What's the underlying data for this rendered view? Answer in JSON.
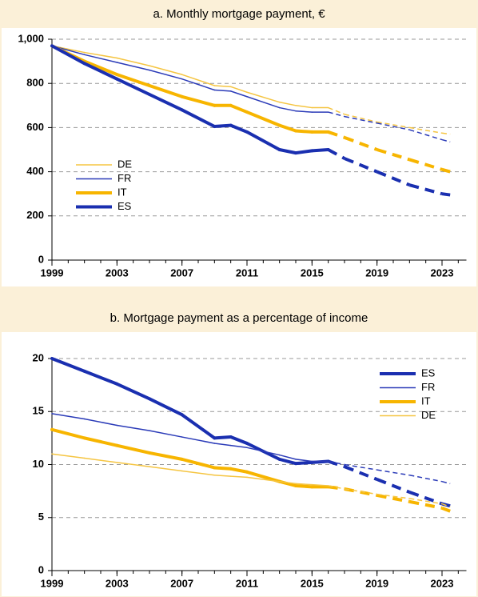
{
  "chart_data": [
    {
      "type": "line",
      "title": "a. Monthly mortgage payment, €",
      "x": [
        1999,
        2001,
        2003,
        2005,
        2007,
        2009,
        2010,
        2011,
        2013,
        2014,
        2015,
        2016,
        2017,
        2019,
        2021,
        2023,
        2023.5
      ],
      "series": [
        {
          "name": "DE",
          "color": "#f5c542",
          "width": 1.5,
          "values": [
            970,
            940,
            915,
            880,
            840,
            790,
            785,
            760,
            715,
            700,
            690,
            690,
            660,
            625,
            600,
            575,
            570
          ]
        },
        {
          "name": "FR",
          "color": "#2b3bb8",
          "width": 1.5,
          "values": [
            970,
            930,
            895,
            860,
            820,
            770,
            765,
            740,
            690,
            675,
            670,
            670,
            650,
            620,
            590,
            545,
            535
          ]
        },
        {
          "name": "IT",
          "color": "#f7b500",
          "width": 4,
          "values": [
            970,
            900,
            840,
            790,
            740,
            700,
            700,
            670,
            610,
            585,
            580,
            580,
            555,
            500,
            455,
            410,
            400
          ]
        },
        {
          "name": "ES",
          "color": "#1a2fb0",
          "width": 4,
          "values": [
            970,
            890,
            820,
            750,
            680,
            605,
            610,
            580,
            500,
            485,
            495,
            500,
            460,
            400,
            340,
            300,
            295
          ]
        }
      ],
      "dashed_from": 2016,
      "xlim": [
        1999,
        2024.5
      ],
      "xticks": [
        1999,
        2003,
        2007,
        2011,
        2015,
        2019,
        2023
      ],
      "ylim": [
        0,
        1000
      ],
      "yticks": [
        0,
        200,
        400,
        600,
        800,
        {
          "value": 1000,
          "label": "1,000"
        }
      ],
      "grid": true,
      "legend": "lower left"
    },
    {
      "type": "line",
      "title": "b. Mortgage payment as a percentage of income",
      "x": [
        1999,
        2001,
        2003,
        2005,
        2007,
        2009,
        2010,
        2011,
        2013,
        2014,
        2015,
        2016,
        2017,
        2019,
        2021,
        2023,
        2023.5
      ],
      "series": [
        {
          "name": "ES",
          "color": "#1a2fb0",
          "width": 4,
          "values": [
            20,
            18.8,
            17.6,
            16.2,
            14.7,
            12.5,
            12.6,
            12.0,
            10.5,
            10.1,
            10.2,
            10.3,
            9.8,
            8.6,
            7.4,
            6.3,
            6.1
          ]
        },
        {
          "name": "FR",
          "color": "#2b3bb8",
          "width": 1.5,
          "values": [
            14.8,
            14.3,
            13.7,
            13.2,
            12.6,
            12.0,
            11.8,
            11.6,
            10.9,
            10.5,
            10.3,
            10.3,
            10.0,
            9.5,
            9.0,
            8.4,
            8.2
          ]
        },
        {
          "name": "IT",
          "color": "#f7b500",
          "width": 4,
          "values": [
            13.3,
            12.5,
            11.8,
            11.1,
            10.5,
            9.7,
            9.6,
            9.3,
            8.4,
            8.0,
            7.9,
            7.9,
            7.7,
            7.1,
            6.5,
            5.9,
            5.6
          ]
        },
        {
          "name": "DE",
          "color": "#f5c542",
          "width": 1.5,
          "values": [
            11.0,
            10.6,
            10.2,
            9.8,
            9.4,
            9.0,
            8.9,
            8.8,
            8.4,
            8.2,
            8.1,
            8.0,
            7.7,
            7.2,
            6.8,
            6.3,
            6.0
          ]
        }
      ],
      "dashed_from": 2016,
      "xlim": [
        1999,
        2024.5
      ],
      "xticks": [
        1999,
        2003,
        2007,
        2011,
        2015,
        2019,
        2023
      ],
      "ylim": [
        0,
        20
      ],
      "yticks": [
        0,
        5,
        10,
        15,
        20
      ],
      "grid": true,
      "legend": "upper right"
    }
  ]
}
